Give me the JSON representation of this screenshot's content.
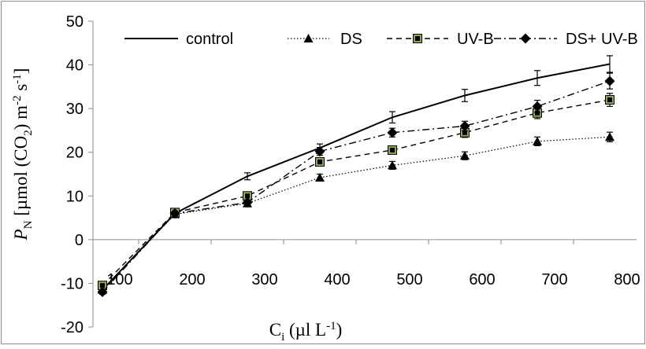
{
  "chart_data": {
    "type": "line",
    "x": [
      100,
      200,
      300,
      400,
      500,
      600,
      700,
      800
    ],
    "x_tick_labels": [
      "100",
      "200",
      "300",
      "400",
      "500",
      "600",
      "700",
      "800"
    ],
    "ylim": [
      -20,
      50
    ],
    "y_ticks": [
      -20,
      -10,
      0,
      10,
      20,
      30,
      40,
      50
    ],
    "y_tick_labels": [
      "-20",
      "-10",
      "0",
      "10",
      "20",
      "30",
      "40",
      "50"
    ],
    "grid": false,
    "legend_position": "top",
    "ylabel": {
      "italic_main": "P",
      "main_sub": "N",
      "part1": " [µmol (CO",
      "sub": "2",
      "part2": ") m",
      "sup1": "-2",
      "part3": " s",
      "sup2": "-1",
      "part4": "]"
    },
    "xlabel": {
      "main": "C",
      "sub": "i",
      "part1": " (µl L",
      "sup": "-1",
      "part2": ")"
    },
    "series": [
      {
        "name": "control",
        "line_style": "solid",
        "marker": "none",
        "color": "#000000",
        "values": [
          -11.5,
          6.0,
          14.5,
          21.0,
          28.0,
          33.0,
          37.0,
          40.2
        ],
        "errors": [
          0.5,
          0.6,
          0.8,
          0.9,
          1.3,
          1.4,
          1.7,
          1.9
        ]
      },
      {
        "name": "DS",
        "line_style": "dotted",
        "marker": "triangle",
        "color": "#000000",
        "values": [
          -11.5,
          5.8,
          8.3,
          14.2,
          17.0,
          19.2,
          22.5,
          23.5
        ],
        "errors": [
          0.4,
          0.5,
          0.6,
          0.8,
          0.9,
          0.9,
          1.0,
          1.1
        ]
      },
      {
        "name": "UV-B",
        "line_style": "dashed",
        "marker": "square",
        "color": "#000000",
        "marker_fill": "#8faa3c",
        "values": [
          -10.5,
          6.2,
          10.0,
          17.8,
          20.5,
          24.5,
          29.0,
          32.0
        ],
        "errors": [
          0.5,
          0.5,
          0.7,
          0.8,
          0.9,
          1.1,
          1.3,
          1.5
        ]
      },
      {
        "name": "DS+ UV-B",
        "line_style": "dashdot",
        "marker": "diamond",
        "color": "#000000",
        "values": [
          -12.0,
          6.0,
          8.5,
          20.2,
          24.5,
          26.0,
          30.5,
          36.3
        ],
        "errors": [
          0.5,
          0.5,
          0.6,
          0.9,
          1.0,
          1.1,
          1.4,
          1.8
        ]
      }
    ]
  }
}
